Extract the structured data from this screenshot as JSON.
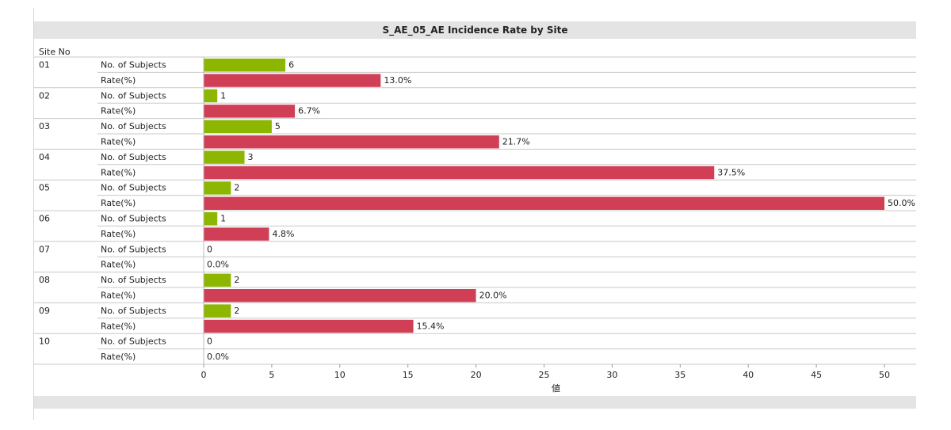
{
  "chart_data": {
    "type": "bar",
    "title": "S_AE_05_AE Incidence Rate by Site",
    "group_header": "Site No",
    "xlabel": "値",
    "xlim": [
      0,
      50
    ],
    "xticks": [
      0,
      5,
      10,
      15,
      20,
      25,
      30,
      35,
      40,
      45,
      50
    ],
    "series": [
      {
        "name": "No. of Subjects",
        "color": "#8db600",
        "unit": ""
      },
      {
        "name": "Rate(%)",
        "color": "#d03f56",
        "unit": "%"
      }
    ],
    "sites": [
      {
        "site": "01",
        "subjects": 6,
        "rate": 13.0,
        "subjects_label": "6",
        "rate_label": "13.0%"
      },
      {
        "site": "02",
        "subjects": 1,
        "rate": 6.7,
        "subjects_label": "1",
        "rate_label": "6.7%"
      },
      {
        "site": "03",
        "subjects": 5,
        "rate": 21.7,
        "subjects_label": "5",
        "rate_label": "21.7%"
      },
      {
        "site": "04",
        "subjects": 3,
        "rate": 37.5,
        "subjects_label": "3",
        "rate_label": "37.5%"
      },
      {
        "site": "05",
        "subjects": 2,
        "rate": 50.0,
        "subjects_label": "2",
        "rate_label": "50.0%"
      },
      {
        "site": "06",
        "subjects": 1,
        "rate": 4.8,
        "subjects_label": "1",
        "rate_label": "4.8%"
      },
      {
        "site": "07",
        "subjects": 0,
        "rate": 0.0,
        "subjects_label": "0",
        "rate_label": "0.0%"
      },
      {
        "site": "08",
        "subjects": 2,
        "rate": 20.0,
        "subjects_label": "2",
        "rate_label": "20.0%"
      },
      {
        "site": "09",
        "subjects": 2,
        "rate": 15.4,
        "subjects_label": "2",
        "rate_label": "15.4%"
      },
      {
        "site": "10",
        "subjects": 0,
        "rate": 0.0,
        "subjects_label": "0",
        "rate_label": "0.0%"
      }
    ]
  }
}
